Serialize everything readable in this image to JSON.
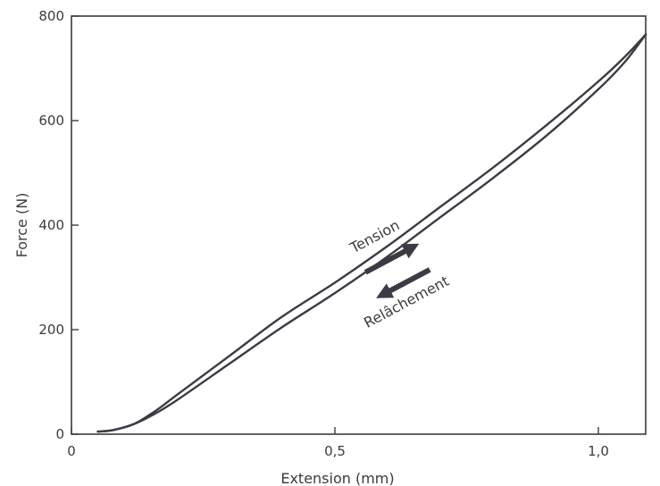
{
  "chart_data": {
    "type": "line",
    "xlabel": "Extension (mm)",
    "ylabel": "Force (N)",
    "xlim": [
      0,
      1.12
    ],
    "ylim": [
      0,
      800
    ],
    "x_ticks": [
      0,
      0.5,
      1.0
    ],
    "x_tick_labels": [
      "0",
      "0,5",
      "1,0"
    ],
    "y_ticks": [
      0,
      200,
      400,
      600,
      800
    ],
    "y_tick_labels": [
      "0",
      "200",
      "400",
      "600",
      "800"
    ],
    "grid": false,
    "series": [
      {
        "name": "Tension",
        "x": [
          0.05,
          0.08,
          0.12,
          0.16,
          0.2,
          0.3,
          0.4,
          0.5,
          0.6,
          0.7,
          0.8,
          0.9,
          1.0,
          1.05,
          1.09
        ],
        "y": [
          5,
          8,
          20,
          45,
          75,
          150,
          225,
          290,
          360,
          435,
          510,
          590,
          675,
          722,
          765
        ]
      },
      {
        "name": "Relâchement",
        "x": [
          1.09,
          1.05,
          1.0,
          0.9,
          0.8,
          0.7,
          0.6,
          0.5,
          0.4,
          0.3,
          0.2,
          0.16,
          0.12,
          0.08,
          0.05
        ],
        "y": [
          765,
          712,
          660,
          570,
          490,
          415,
          340,
          270,
          205,
          135,
          65,
          40,
          20,
          8,
          5
        ]
      }
    ],
    "annotations": [
      {
        "text": "Tension",
        "x": 0.58,
        "y": 370,
        "angle": -28,
        "arrow": "up-right"
      },
      {
        "text": "Relâchement",
        "x": 0.64,
        "y": 245,
        "angle": -28,
        "arrow": "down-left"
      }
    ]
  }
}
